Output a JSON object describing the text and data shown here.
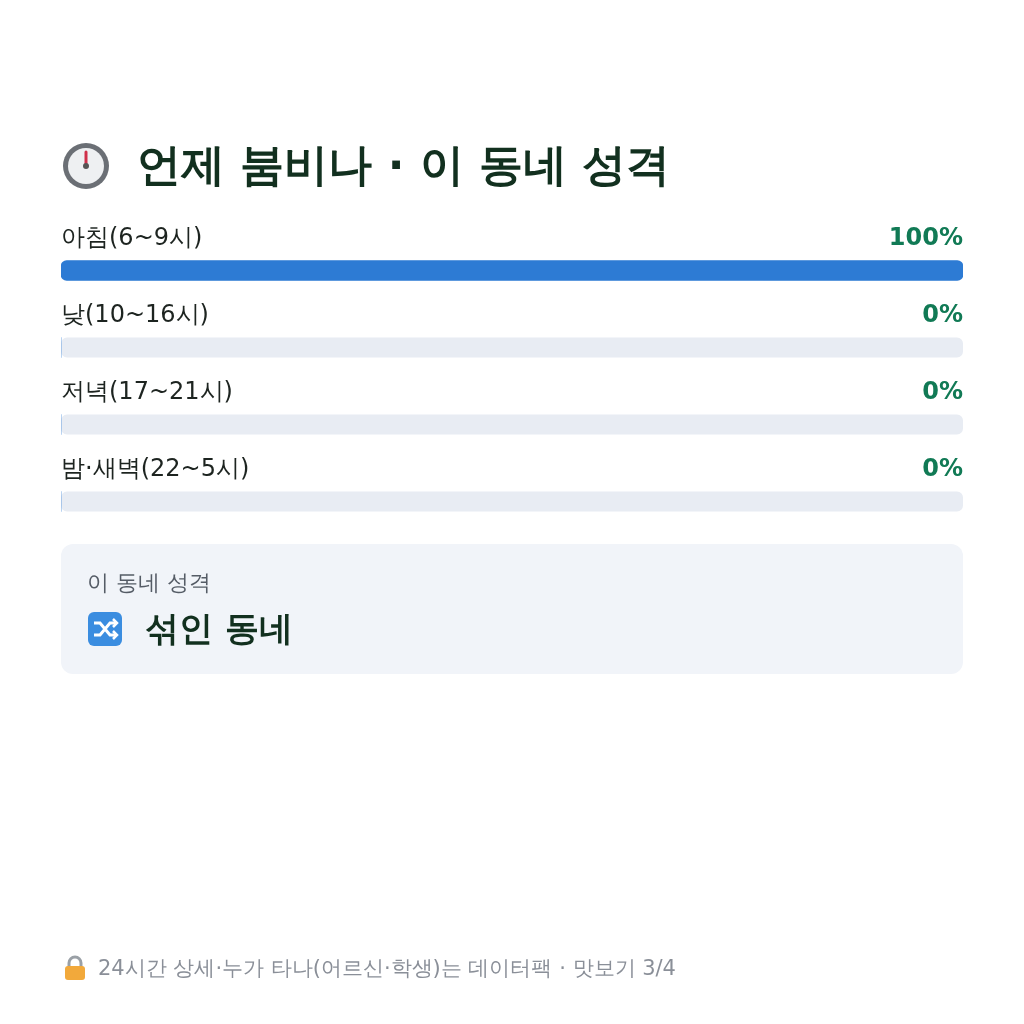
{
  "chart_data": {
    "type": "bar",
    "orientation": "horizontal",
    "title": "언제 붐비나 · 이 동네 성격",
    "categories": [
      "아침(6~9시)",
      "낮(10~16시)",
      "저녁(17~21시)",
      "밤·새벽(22~5시)"
    ],
    "values": [
      100,
      0,
      0,
      0
    ],
    "value_labels": [
      "100%",
      "0%",
      "0%",
      "0%"
    ],
    "color": "#2d7bd4",
    "xlim": [
      0,
      100
    ],
    "tick_labels": false,
    "annotations": [
      "이 동네 성격",
      "섞인 동네",
      "24시간 상세·누가 타나(어르신·학생)는 데이터팩 · 맛보기 3/4"
    ]
  }
}
